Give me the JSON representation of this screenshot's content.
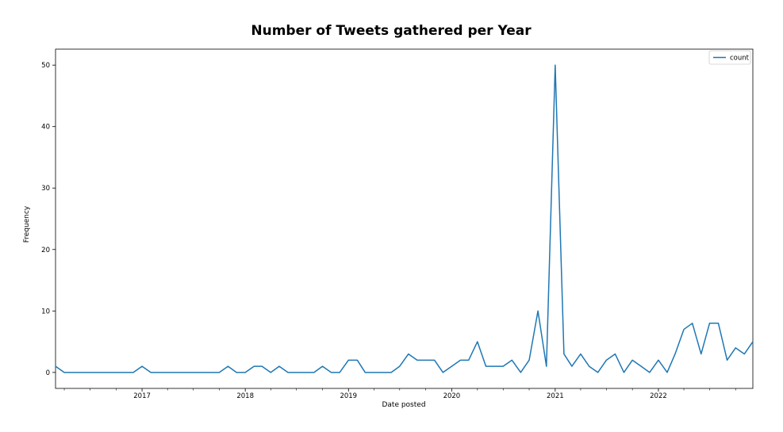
{
  "chart_data": {
    "type": "line",
    "title": "Number of Tweets gathered per Year",
    "xlabel": "Date posted",
    "ylabel": "Frequency",
    "ylim": [
      -2.6,
      52.6
    ],
    "xlim": [
      "2016-03-01",
      "2022-12-01"
    ],
    "x_tick_labels": [
      "2017",
      "2018",
      "2019",
      "2020",
      "2021",
      "2022"
    ],
    "x_ticks": [
      "2017-01-01",
      "2018-01-01",
      "2019-01-01",
      "2020-01-01",
      "2021-01-01",
      "2022-01-01"
    ],
    "y_ticks": [
      0,
      10,
      20,
      30,
      40,
      50
    ],
    "legend_position": "top-right",
    "grid": false,
    "line_color": "#1f77b4",
    "series": [
      {
        "name": "count",
        "x": [
          "2016-03",
          "2016-04",
          "2016-05",
          "2016-06",
          "2016-07",
          "2016-08",
          "2016-09",
          "2016-10",
          "2016-11",
          "2016-12",
          "2017-01",
          "2017-02",
          "2017-03",
          "2017-04",
          "2017-05",
          "2017-06",
          "2017-07",
          "2017-08",
          "2017-09",
          "2017-10",
          "2017-11",
          "2017-12",
          "2018-01",
          "2018-02",
          "2018-03",
          "2018-04",
          "2018-05",
          "2018-06",
          "2018-07",
          "2018-08",
          "2018-09",
          "2018-10",
          "2018-11",
          "2018-12",
          "2019-01",
          "2019-02",
          "2019-03",
          "2019-04",
          "2019-05",
          "2019-06",
          "2019-07",
          "2019-08",
          "2019-09",
          "2019-10",
          "2019-11",
          "2019-12",
          "2020-01",
          "2020-02",
          "2020-03",
          "2020-04",
          "2020-05",
          "2020-06",
          "2020-07",
          "2020-08",
          "2020-09",
          "2020-10",
          "2020-11",
          "2020-12",
          "2021-01",
          "2021-02",
          "2021-03",
          "2021-04",
          "2021-05",
          "2021-06",
          "2021-07",
          "2021-08",
          "2021-09",
          "2021-10",
          "2021-11",
          "2021-12",
          "2022-01",
          "2022-02",
          "2022-03",
          "2022-04",
          "2022-05",
          "2022-06",
          "2022-07",
          "2022-08",
          "2022-09",
          "2022-10",
          "2022-11",
          "2022-12"
        ],
        "values": [
          1,
          0,
          0,
          0,
          0,
          0,
          0,
          0,
          0,
          0,
          1,
          0,
          0,
          0,
          0,
          0,
          0,
          0,
          0,
          0,
          1,
          0,
          0,
          1,
          1,
          0,
          1,
          0,
          0,
          0,
          0,
          1,
          0,
          0,
          2,
          2,
          0,
          0,
          0,
          0,
          1,
          3,
          2,
          2,
          2,
          0,
          1,
          2,
          2,
          5,
          1,
          1,
          1,
          2,
          0,
          2,
          10,
          1,
          50,
          3,
          1,
          3,
          1,
          0,
          2,
          3,
          0,
          2,
          1,
          0,
          2,
          0,
          3,
          7,
          8,
          3,
          8,
          8,
          2,
          4,
          3,
          5
        ]
      }
    ]
  }
}
